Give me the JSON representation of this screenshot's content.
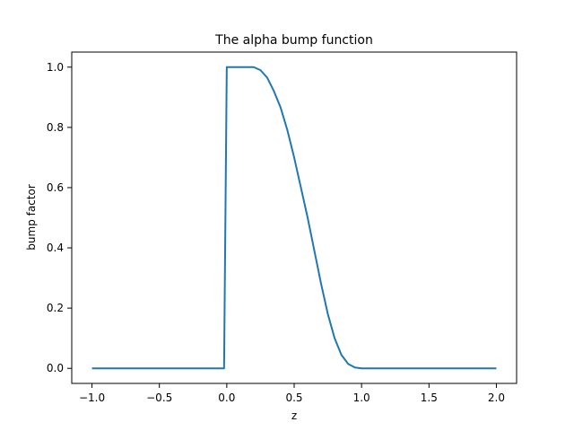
{
  "chart_data": {
    "type": "line",
    "title": "The alpha bump function",
    "xlabel": "z",
    "ylabel": "bump factor",
    "xlim": [
      -1.15,
      2.15
    ],
    "ylim": [
      -0.05,
      1.05
    ],
    "xticks": [
      -1.0,
      -0.5,
      0.0,
      0.5,
      1.0,
      1.5,
      2.0
    ],
    "xtick_labels": [
      "−1.0",
      "−0.5",
      "0.0",
      "0.5",
      "1.0",
      "1.5",
      "2.0"
    ],
    "yticks": [
      0.0,
      0.2,
      0.4,
      0.6,
      0.8,
      1.0
    ],
    "ytick_labels": [
      "0.0",
      "0.2",
      "0.4",
      "0.6",
      "0.8",
      "1.0"
    ],
    "grid": false,
    "legend": false,
    "colors": {
      "line": "#1f77b4",
      "axes": "#000000",
      "background": "#ffffff"
    },
    "series": [
      {
        "x": [
          -1.0,
          -0.5,
          -0.02,
          0.0,
          0.05,
          0.1,
          0.15,
          0.2,
          0.25,
          0.3,
          0.35,
          0.4,
          0.45,
          0.5,
          0.55,
          0.6,
          0.65,
          0.7,
          0.75,
          0.8,
          0.85,
          0.9,
          0.95,
          1.0,
          1.5,
          2.0
        ],
        "y": [
          0.0,
          0.0,
          0.0,
          1.0,
          1.0,
          1.0,
          1.0,
          1.0,
          0.99,
          0.965,
          0.92,
          0.865,
          0.79,
          0.7,
          0.6,
          0.5,
          0.39,
          0.28,
          0.18,
          0.1,
          0.045,
          0.015,
          0.003,
          0.0,
          0.0,
          0.0
        ]
      }
    ]
  }
}
